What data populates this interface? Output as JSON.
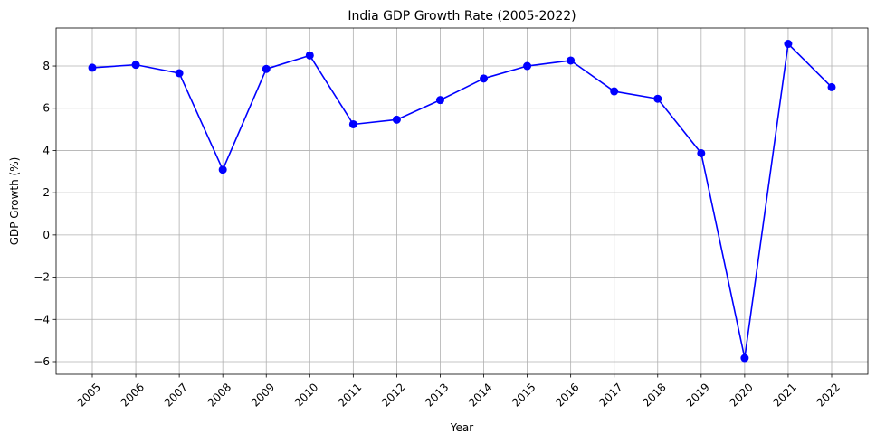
{
  "chart_data": {
    "type": "line",
    "title": "India GDP Growth Rate (2005-2022)",
    "xlabel": "Year",
    "ylabel": "GDP Growth (%)",
    "x": [
      "2005",
      "2006",
      "2007",
      "2008",
      "2009",
      "2010",
      "2011",
      "2012",
      "2013",
      "2014",
      "2015",
      "2016",
      "2017",
      "2018",
      "2019",
      "2020",
      "2021",
      "2022"
    ],
    "series": [
      {
        "values": [
          7.92,
          8.06,
          7.66,
          3.09,
          7.86,
          8.5,
          5.24,
          5.46,
          6.39,
          7.41,
          8.0,
          8.26,
          6.8,
          6.45,
          3.87,
          -5.83,
          9.05,
          7.0
        ],
        "color": "#0000ff",
        "marker": "circle"
      }
    ],
    "ylim": [
      -6.6,
      9.8
    ],
    "yticks": [
      -6,
      -4,
      -2,
      0,
      2,
      4,
      6,
      8
    ],
    "ytick_labels": [
      "−6",
      "−4",
      "−2",
      "0",
      "2",
      "4",
      "6",
      "8"
    ],
    "xtick_rotation": 45,
    "grid": true,
    "grid_color": "#b0b0b0"
  }
}
